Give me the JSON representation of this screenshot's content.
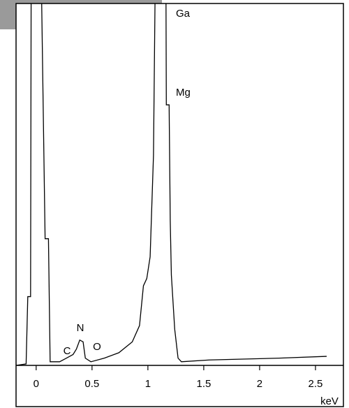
{
  "chart_data": {
    "type": "line",
    "xlabel": "keV",
    "annotations": [
      "Ga",
      "Mg",
      "N",
      "C",
      "O"
    ],
    "x": [
      -0.18,
      -0.09,
      -0.075,
      -0.05,
      -0.044,
      0.04,
      0.08,
      0.11,
      0.125,
      0.21,
      0.27,
      0.33,
      0.36,
      0.39,
      0.42,
      0.44,
      0.49,
      0.61,
      0.74,
      0.86,
      0.925,
      0.96,
      0.99,
      1.02,
      1.05,
      1.07,
      1.16,
      1.165,
      1.19,
      1.2,
      1.21,
      1.24,
      1.27,
      1.3,
      1.55,
      2.175,
      2.6
    ],
    "series": [
      {
        "color": "#000000",
        "values": [
          0,
          0.4,
          19,
          19,
          120,
          120,
          35,
          35,
          1,
          1,
          2,
          3,
          4.5,
          7,
          6.5,
          2,
          1,
          2,
          3.5,
          6.5,
          11,
          22,
          24,
          30,
          58,
          120,
          120,
          72,
          72,
          40,
          25,
          10,
          2,
          1,
          1.5,
          2,
          2.5
        ]
      }
    ],
    "xlim": [
      -0.18,
      2.75
    ],
    "ylim": [
      0,
      100
    ],
    "xticks": [
      0,
      0.5,
      1,
      1.5,
      2,
      2.5
    ]
  }
}
